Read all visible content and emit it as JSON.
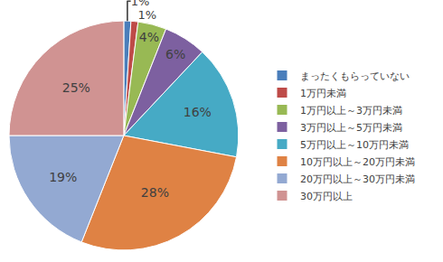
{
  "chart_data": {
    "type": "pie",
    "categories": [
      "まったくもらっていない",
      "1万円未満",
      "1万円以上～3万円未満",
      "3万円以上～5万円未満",
      "5万円以上～10万円未満",
      "10万円以上～20万円未満",
      "20万円以上～30万円未満",
      "30万円以上"
    ],
    "values": [
      1,
      1,
      4,
      6,
      16,
      28,
      19,
      25
    ],
    "value_labels": [
      "1%",
      "1%",
      "4%",
      "6%",
      "16%",
      "28%",
      "19%",
      "25%"
    ],
    "colors": [
      "#4A7EBB",
      "#BE4B48",
      "#98B954",
      "#7D60A0",
      "#46AAC5",
      "#DF8244",
      "#93A9D2",
      "#D09392"
    ],
    "data_labels": true,
    "legend": "right"
  }
}
